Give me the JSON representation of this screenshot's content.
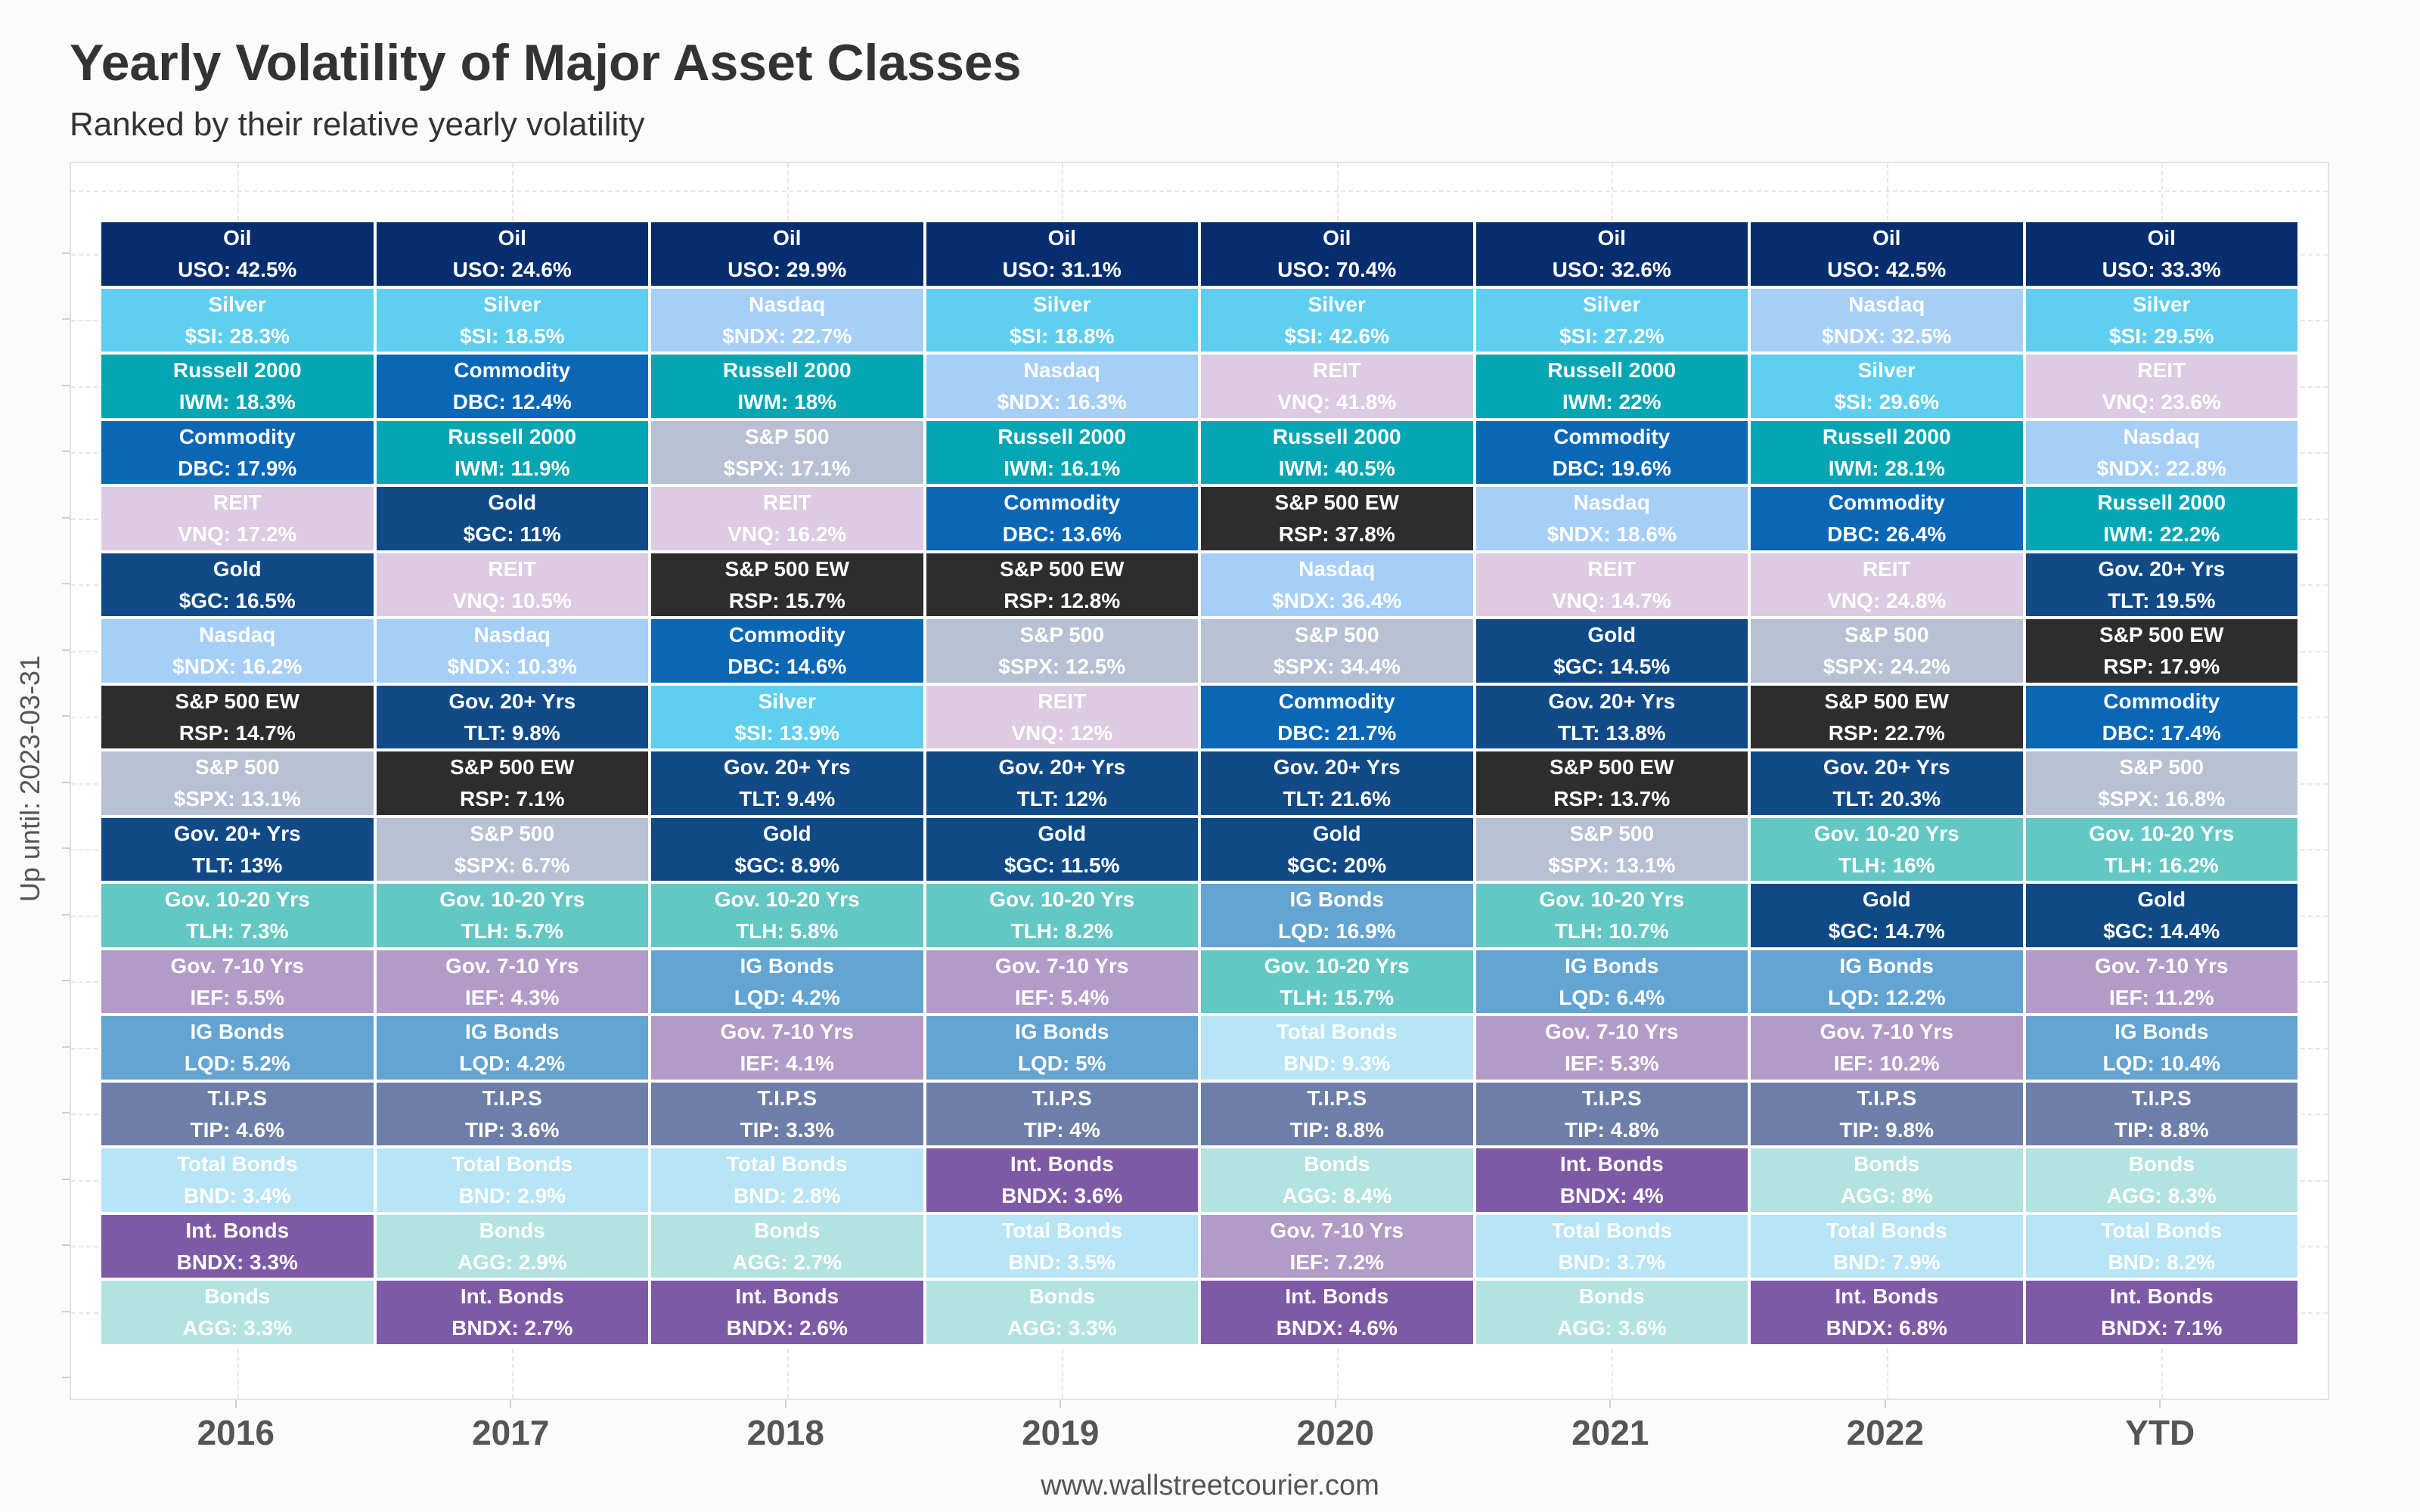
{
  "title": "Yearly Volatility of Major Asset Classes",
  "subtitle": "Ranked by their relative yearly volatility",
  "y_axis_label": "Up until: 2023-03-31",
  "footer": "www.wallstreetcourier.com",
  "colors": {
    "Oil": "#062e6f",
    "Silver": "#5fcfef",
    "Nasdaq": "#a6cff8",
    "Russell 2000": "#05a6b4",
    "Commodity": "#0a67b6",
    "REIT": "#dccbe2",
    "Gold": "#0f4a87",
    "S&P 500 EW": "#2d2d2d",
    "S&P 500": "#b8c1d3",
    "Gov. 20+ Yrs": "#114a87",
    "Gov. 10-20 Yrs": "#63c8c4",
    "Gov. 7-10 Yrs": "#b39bc8",
    "IG Bonds": "#63a4d2",
    "T.I.P.S": "#6d7ea8",
    "Total Bonds": "#b7e5f6",
    "Int. Bonds": "#7e5aa6",
    "Bonds": "#b2e3e1"
  },
  "dark_text_assets": [],
  "chart_data": {
    "type": "table",
    "title": "Yearly Volatility of Major Asset Classes",
    "subtitle": "Ranked by their relative yearly volatility",
    "ylabel": "Up until: 2023-03-31",
    "columns": [
      {
        "year": "2016",
        "cells": [
          {
            "name": "Oil",
            "value": "USO: 42.5%"
          },
          {
            "name": "Silver",
            "value": "$SI: 28.3%"
          },
          {
            "name": "Russell 2000",
            "value": "IWM: 18.3%"
          },
          {
            "name": "Commodity",
            "value": "DBC: 17.9%"
          },
          {
            "name": "REIT",
            "value": "VNQ: 17.2%"
          },
          {
            "name": "Gold",
            "value": "$GC: 16.5%"
          },
          {
            "name": "Nasdaq",
            "value": "$NDX: 16.2%"
          },
          {
            "name": "S&P 500 EW",
            "value": "RSP: 14.7%"
          },
          {
            "name": "S&P 500",
            "value": "$SPX: 13.1%"
          },
          {
            "name": "Gov. 20+ Yrs",
            "value": "TLT: 13%"
          },
          {
            "name": "Gov. 10-20 Yrs",
            "value": "TLH: 7.3%"
          },
          {
            "name": "Gov. 7-10 Yrs",
            "value": "IEF: 5.5%"
          },
          {
            "name": "IG Bonds",
            "value": "LQD: 5.2%"
          },
          {
            "name": "T.I.P.S",
            "value": "TIP: 4.6%"
          },
          {
            "name": "Total Bonds",
            "value": "BND: 3.4%"
          },
          {
            "name": "Int. Bonds",
            "value": "BNDX: 3.3%"
          },
          {
            "name": "Bonds",
            "value": "AGG: 3.3%"
          }
        ]
      },
      {
        "year": "2017",
        "cells": [
          {
            "name": "Oil",
            "value": "USO: 24.6%"
          },
          {
            "name": "Silver",
            "value": "$SI: 18.5%"
          },
          {
            "name": "Commodity",
            "value": "DBC: 12.4%"
          },
          {
            "name": "Russell 2000",
            "value": "IWM: 11.9%"
          },
          {
            "name": "Gold",
            "value": "$GC: 11%"
          },
          {
            "name": "REIT",
            "value": "VNQ: 10.5%"
          },
          {
            "name": "Nasdaq",
            "value": "$NDX: 10.3%"
          },
          {
            "name": "Gov. 20+ Yrs",
            "value": "TLT: 9.8%"
          },
          {
            "name": "S&P 500 EW",
            "value": "RSP: 7.1%"
          },
          {
            "name": "S&P 500",
            "value": "$SPX: 6.7%"
          },
          {
            "name": "Gov. 10-20 Yrs",
            "value": "TLH: 5.7%"
          },
          {
            "name": "Gov. 7-10 Yrs",
            "value": "IEF: 4.3%"
          },
          {
            "name": "IG Bonds",
            "value": "LQD: 4.2%"
          },
          {
            "name": "T.I.P.S",
            "value": "TIP: 3.6%"
          },
          {
            "name": "Total Bonds",
            "value": "BND: 2.9%"
          },
          {
            "name": "Bonds",
            "value": "AGG: 2.9%"
          },
          {
            "name": "Int. Bonds",
            "value": "BNDX: 2.7%"
          }
        ]
      },
      {
        "year": "2018",
        "cells": [
          {
            "name": "Oil",
            "value": "USO: 29.9%"
          },
          {
            "name": "Nasdaq",
            "value": "$NDX: 22.7%"
          },
          {
            "name": "Russell 2000",
            "value": "IWM: 18%"
          },
          {
            "name": "S&P 500",
            "value": "$SPX: 17.1%"
          },
          {
            "name": "REIT",
            "value": "VNQ: 16.2%"
          },
          {
            "name": "S&P 500 EW",
            "value": "RSP: 15.7%"
          },
          {
            "name": "Commodity",
            "value": "DBC: 14.6%"
          },
          {
            "name": "Silver",
            "value": "$SI: 13.9%"
          },
          {
            "name": "Gov. 20+ Yrs",
            "value": "TLT: 9.4%"
          },
          {
            "name": "Gold",
            "value": "$GC: 8.9%"
          },
          {
            "name": "Gov. 10-20 Yrs",
            "value": "TLH: 5.8%"
          },
          {
            "name": "IG Bonds",
            "value": "LQD: 4.2%"
          },
          {
            "name": "Gov. 7-10 Yrs",
            "value": "IEF: 4.1%"
          },
          {
            "name": "T.I.P.S",
            "value": "TIP: 3.3%"
          },
          {
            "name": "Total Bonds",
            "value": "BND: 2.8%"
          },
          {
            "name": "Bonds",
            "value": "AGG: 2.7%"
          },
          {
            "name": "Int. Bonds",
            "value": "BNDX: 2.6%"
          }
        ]
      },
      {
        "year": "2019",
        "cells": [
          {
            "name": "Oil",
            "value": "USO: 31.1%"
          },
          {
            "name": "Silver",
            "value": "$SI: 18.8%"
          },
          {
            "name": "Nasdaq",
            "value": "$NDX: 16.3%"
          },
          {
            "name": "Russell 2000",
            "value": "IWM: 16.1%"
          },
          {
            "name": "Commodity",
            "value": "DBC: 13.6%"
          },
          {
            "name": "S&P 500 EW",
            "value": "RSP: 12.8%"
          },
          {
            "name": "S&P 500",
            "value": "$SPX: 12.5%"
          },
          {
            "name": "REIT",
            "value": "VNQ: 12%"
          },
          {
            "name": "Gov. 20+ Yrs",
            "value": "TLT: 12%"
          },
          {
            "name": "Gold",
            "value": "$GC: 11.5%"
          },
          {
            "name": "Gov. 10-20 Yrs",
            "value": "TLH: 8.2%"
          },
          {
            "name": "Gov. 7-10 Yrs",
            "value": "IEF: 5.4%"
          },
          {
            "name": "IG Bonds",
            "value": "LQD: 5%"
          },
          {
            "name": "T.I.P.S",
            "value": "TIP: 4%"
          },
          {
            "name": "Int. Bonds",
            "value": "BNDX: 3.6%"
          },
          {
            "name": "Total Bonds",
            "value": "BND: 3.5%"
          },
          {
            "name": "Bonds",
            "value": "AGG: 3.3%"
          }
        ]
      },
      {
        "year": "2020",
        "cells": [
          {
            "name": "Oil",
            "value": "USO: 70.4%"
          },
          {
            "name": "Silver",
            "value": "$SI: 42.6%"
          },
          {
            "name": "REIT",
            "value": "VNQ: 41.8%"
          },
          {
            "name": "Russell 2000",
            "value": "IWM: 40.5%"
          },
          {
            "name": "S&P 500 EW",
            "value": "RSP: 37.8%"
          },
          {
            "name": "Nasdaq",
            "value": "$NDX: 36.4%"
          },
          {
            "name": "S&P 500",
            "value": "$SPX: 34.4%"
          },
          {
            "name": "Commodity",
            "value": "DBC: 21.7%"
          },
          {
            "name": "Gov. 20+ Yrs",
            "value": "TLT: 21.6%"
          },
          {
            "name": "Gold",
            "value": "$GC: 20%"
          },
          {
            "name": "IG Bonds",
            "value": "LQD: 16.9%"
          },
          {
            "name": "Gov. 10-20 Yrs",
            "value": "TLH: 15.7%"
          },
          {
            "name": "Total Bonds",
            "value": "BND: 9.3%"
          },
          {
            "name": "T.I.P.S",
            "value": "TIP: 8.8%"
          },
          {
            "name": "Bonds",
            "value": "AGG: 8.4%"
          },
          {
            "name": "Gov. 7-10 Yrs",
            "value": "IEF: 7.2%"
          },
          {
            "name": "Int. Bonds",
            "value": "BNDX: 4.6%"
          }
        ]
      },
      {
        "year": "2021",
        "cells": [
          {
            "name": "Oil",
            "value": "USO: 32.6%"
          },
          {
            "name": "Silver",
            "value": "$SI: 27.2%"
          },
          {
            "name": "Russell 2000",
            "value": "IWM: 22%"
          },
          {
            "name": "Commodity",
            "value": "DBC: 19.6%"
          },
          {
            "name": "Nasdaq",
            "value": "$NDX: 18.6%"
          },
          {
            "name": "REIT",
            "value": "VNQ: 14.7%"
          },
          {
            "name": "Gold",
            "value": "$GC: 14.5%"
          },
          {
            "name": "Gov. 20+ Yrs",
            "value": "TLT: 13.8%"
          },
          {
            "name": "S&P 500 EW",
            "value": "RSP: 13.7%"
          },
          {
            "name": "S&P 500",
            "value": "$SPX: 13.1%"
          },
          {
            "name": "Gov. 10-20 Yrs",
            "value": "TLH: 10.7%"
          },
          {
            "name": "IG Bonds",
            "value": "LQD: 6.4%"
          },
          {
            "name": "Gov. 7-10 Yrs",
            "value": "IEF: 5.3%"
          },
          {
            "name": "T.I.P.S",
            "value": "TIP: 4.8%"
          },
          {
            "name": "Int. Bonds",
            "value": "BNDX: 4%"
          },
          {
            "name": "Total Bonds",
            "value": "BND: 3.7%"
          },
          {
            "name": "Bonds",
            "value": "AGG: 3.6%"
          }
        ]
      },
      {
        "year": "2022",
        "cells": [
          {
            "name": "Oil",
            "value": "USO: 42.5%"
          },
          {
            "name": "Nasdaq",
            "value": "$NDX: 32.5%"
          },
          {
            "name": "Silver",
            "value": "$SI: 29.6%"
          },
          {
            "name": "Russell 2000",
            "value": "IWM: 28.1%"
          },
          {
            "name": "Commodity",
            "value": "DBC: 26.4%"
          },
          {
            "name": "REIT",
            "value": "VNQ: 24.8%"
          },
          {
            "name": "S&P 500",
            "value": "$SPX: 24.2%"
          },
          {
            "name": "S&P 500 EW",
            "value": "RSP: 22.7%"
          },
          {
            "name": "Gov. 20+ Yrs",
            "value": "TLT: 20.3%"
          },
          {
            "name": "Gov. 10-20 Yrs",
            "value": "TLH: 16%"
          },
          {
            "name": "Gold",
            "value": "$GC: 14.7%"
          },
          {
            "name": "IG Bonds",
            "value": "LQD: 12.2%"
          },
          {
            "name": "Gov. 7-10 Yrs",
            "value": "IEF: 10.2%"
          },
          {
            "name": "T.I.P.S",
            "value": "TIP: 9.8%"
          },
          {
            "name": "Bonds",
            "value": "AGG: 8%"
          },
          {
            "name": "Total Bonds",
            "value": "BND: 7.9%"
          },
          {
            "name": "Int. Bonds",
            "value": "BNDX: 6.8%"
          }
        ]
      },
      {
        "year": "YTD",
        "cells": [
          {
            "name": "Oil",
            "value": "USO: 33.3%"
          },
          {
            "name": "Silver",
            "value": "$SI: 29.5%"
          },
          {
            "name": "REIT",
            "value": "VNQ: 23.6%"
          },
          {
            "name": "Nasdaq",
            "value": "$NDX: 22.8%"
          },
          {
            "name": "Russell 2000",
            "value": "IWM: 22.2%"
          },
          {
            "name": "Gov. 20+ Yrs",
            "value": "TLT: 19.5%"
          },
          {
            "name": "S&P 500 EW",
            "value": "RSP: 17.9%"
          },
          {
            "name": "Commodity",
            "value": "DBC: 17.4%"
          },
          {
            "name": "S&P 500",
            "value": "$SPX: 16.8%"
          },
          {
            "name": "Gov. 10-20 Yrs",
            "value": "TLH: 16.2%"
          },
          {
            "name": "Gold",
            "value": "$GC: 14.4%"
          },
          {
            "name": "Gov. 7-10 Yrs",
            "value": "IEF: 11.2%"
          },
          {
            "name": "IG Bonds",
            "value": "LQD: 10.4%"
          },
          {
            "name": "T.I.P.S",
            "value": "TIP: 8.8%"
          },
          {
            "name": "Bonds",
            "value": "AGG: 8.3%"
          },
          {
            "name": "Total Bonds",
            "value": "BND: 8.2%"
          },
          {
            "name": "Int. Bonds",
            "value": "BNDX: 7.1%"
          }
        ]
      }
    ]
  }
}
